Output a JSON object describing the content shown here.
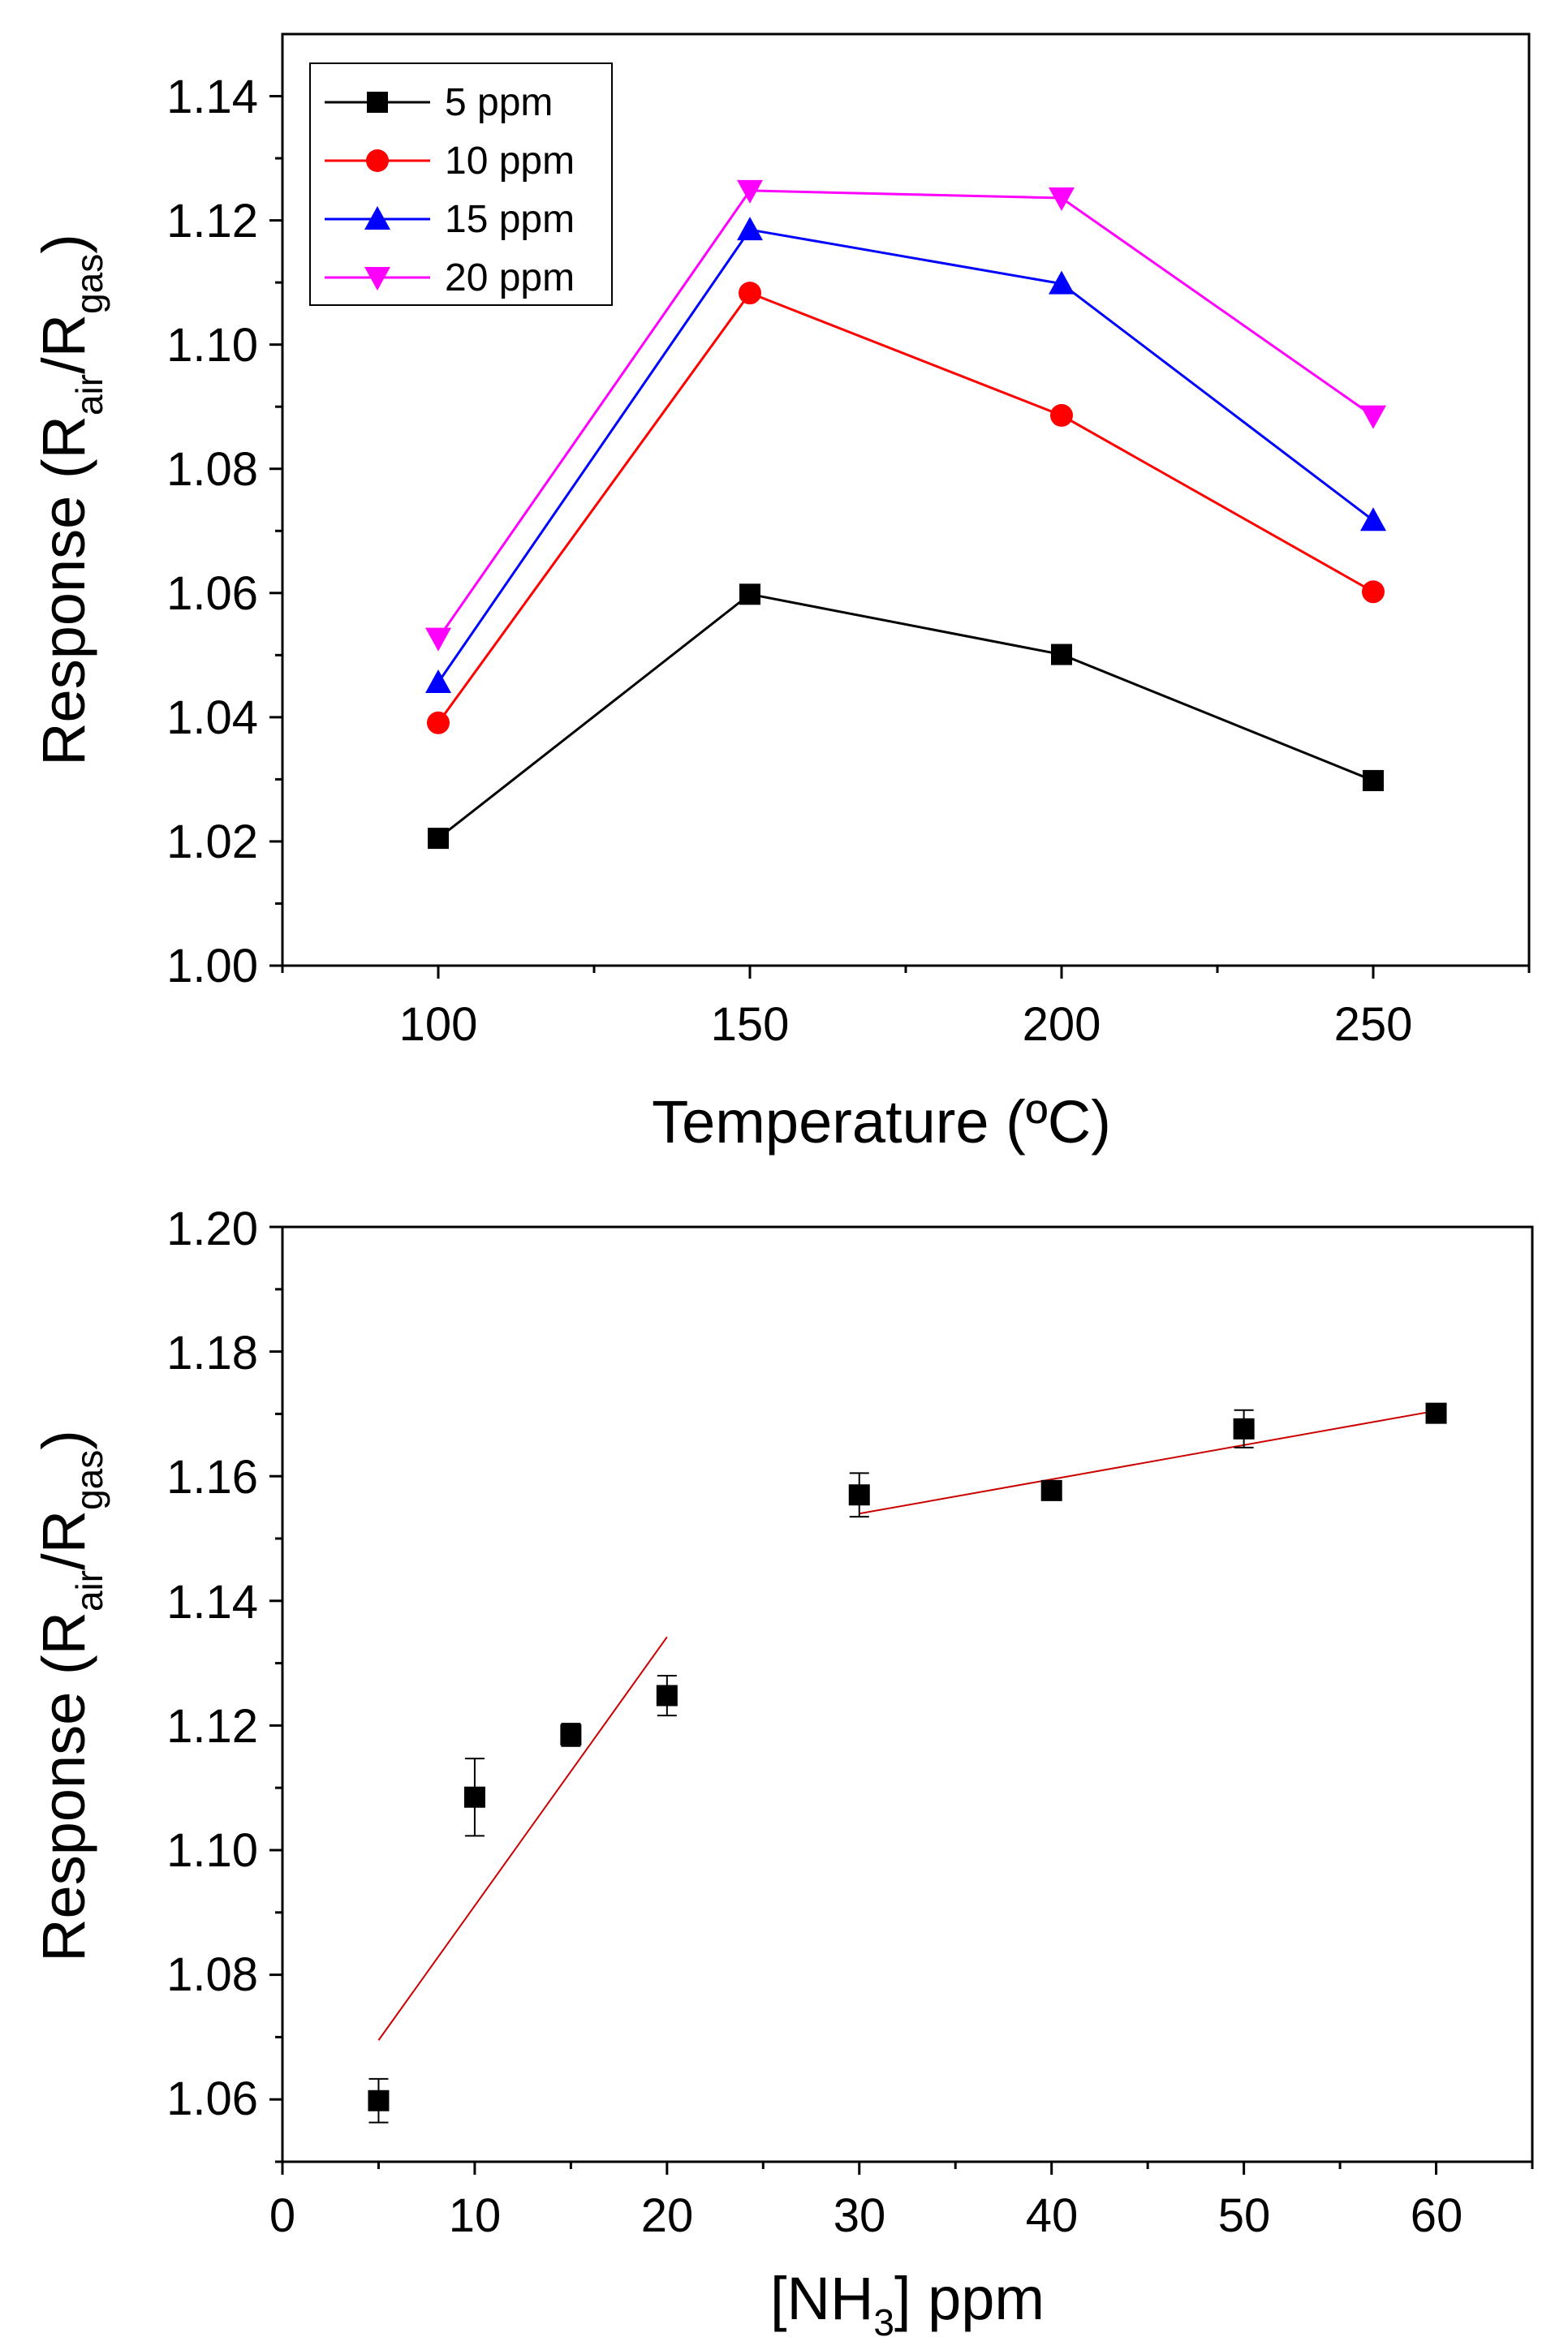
{
  "chart_data": [
    {
      "type": "line",
      "xlabel": "Temperature (ºC)",
      "ylabel": {
        "main": "Response (R",
        "sub1": "air",
        "mid": "/R",
        "sub2": "gas",
        "end": ")"
      },
      "xlim": [
        75,
        275
      ],
      "ylim": [
        1.0,
        1.15
      ],
      "xticks": [
        "100",
        "150",
        "200",
        "250"
      ],
      "yticks": [
        "1.00",
        "1.02",
        "1.04",
        "1.06",
        "1.08",
        "1.10",
        "1.12",
        "1.14"
      ],
      "x": [
        100,
        150,
        200,
        250
      ],
      "legend_position": "top-left",
      "series": [
        {
          "name": "5 ppm",
          "color": "#000000",
          "marker": "square",
          "values": [
            1.0205,
            1.0598,
            1.0501,
            1.0298
          ]
        },
        {
          "name": "10 ppm",
          "color": "#ff0000",
          "marker": "circle",
          "values": [
            1.0391,
            1.1083,
            1.0886,
            1.0602
          ]
        },
        {
          "name": "15 ppm",
          "color": "#0000ff",
          "marker": "triangle-up",
          "values": [
            1.0456,
            1.1185,
            1.1098,
            1.0717
          ]
        },
        {
          "name": "20 ppm",
          "color": "#ff00ff",
          "marker": "triangle-down",
          "values": [
            1.0527,
            1.1248,
            1.1236,
            1.0885
          ]
        }
      ]
    },
    {
      "type": "scatter",
      "xlabel": {
        "main": "[NH",
        "sub": "3",
        "end": "] ppm"
      },
      "ylabel": {
        "main": "Response (R",
        "sub1": "air",
        "mid": "/R",
        "sub2": "gas",
        "end": ")"
      },
      "xlim": [
        0,
        65
      ],
      "ylim": [
        1.05,
        1.2
      ],
      "xticks": [
        "0",
        "10",
        "20",
        "30",
        "40",
        "50",
        "60"
      ],
      "yticks": [
        "1.06",
        "1.08",
        "1.10",
        "1.12",
        "1.14",
        "1.16",
        "1.18",
        "1.20"
      ],
      "points": [
        {
          "x": 5,
          "y": 1.0598,
          "err": 0.0035
        },
        {
          "x": 10,
          "y": 1.1085,
          "err": 0.0062
        },
        {
          "x": 15,
          "y": 1.1185,
          "err": 0.0018
        },
        {
          "x": 20,
          "y": 1.1248,
          "err": 0.0032
        },
        {
          "x": 30,
          "y": 1.157,
          "err": 0.0035
        },
        {
          "x": 40,
          "y": 1.1577,
          "err": 0.001
        },
        {
          "x": 50,
          "y": 1.1676,
          "err": 0.003
        },
        {
          "x": 60,
          "y": 1.1701,
          "err": 0.0005
        }
      ],
      "fits": [
        {
          "color": "#cc0000",
          "x": [
            5,
            20
          ],
          "y": [
            1.0695,
            1.1342
          ]
        },
        {
          "color": "#cc0000",
          "x": [
            30,
            60
          ],
          "y": [
            1.154,
            1.1705
          ]
        }
      ]
    }
  ]
}
